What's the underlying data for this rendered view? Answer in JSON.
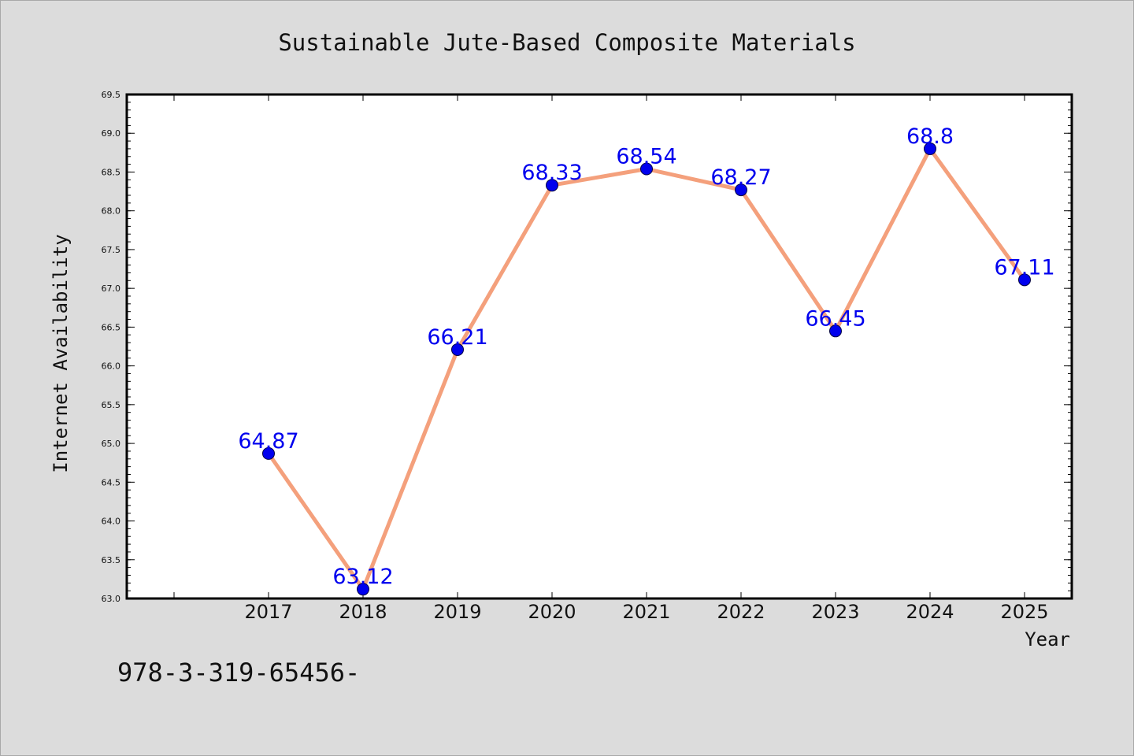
{
  "chart_data": {
    "type": "line",
    "title": "Sustainable Jute-Based Composite Materials",
    "xlabel": "Year",
    "ylabel": "Internet Availability",
    "x": [
      "2017",
      "2018",
      "2019",
      "2020",
      "2021",
      "2022",
      "2023",
      "2024",
      "2025"
    ],
    "series": [
      {
        "values": [
          64.87,
          63.12,
          66.21,
          68.33,
          68.54,
          68.27,
          66.45,
          68.8,
          67.11
        ],
        "data_labels": [
          "64.87",
          "63.12",
          "66.21",
          "68.33",
          "68.54",
          "68.27",
          "66.45",
          "68.8",
          "67.11"
        ]
      }
    ],
    "ylim": [
      63.0,
      69.5
    ],
    "yticks": [
      "63.0",
      "63.5",
      "64.0",
      "64.5",
      "65.0",
      "65.5",
      "66.0",
      "66.5",
      "67.0",
      "67.5",
      "68.0",
      "68.5",
      "69.0",
      "69.5"
    ],
    "grid": false,
    "legend": "none",
    "colors": {
      "line": "#f4a07c",
      "marker": "#0000ee",
      "data_label": "#0000ee",
      "plot_background": "#ffffff",
      "figure_background": "#dcdcdc"
    }
  },
  "footer": {
    "text": "978-3-319-65456-"
  }
}
